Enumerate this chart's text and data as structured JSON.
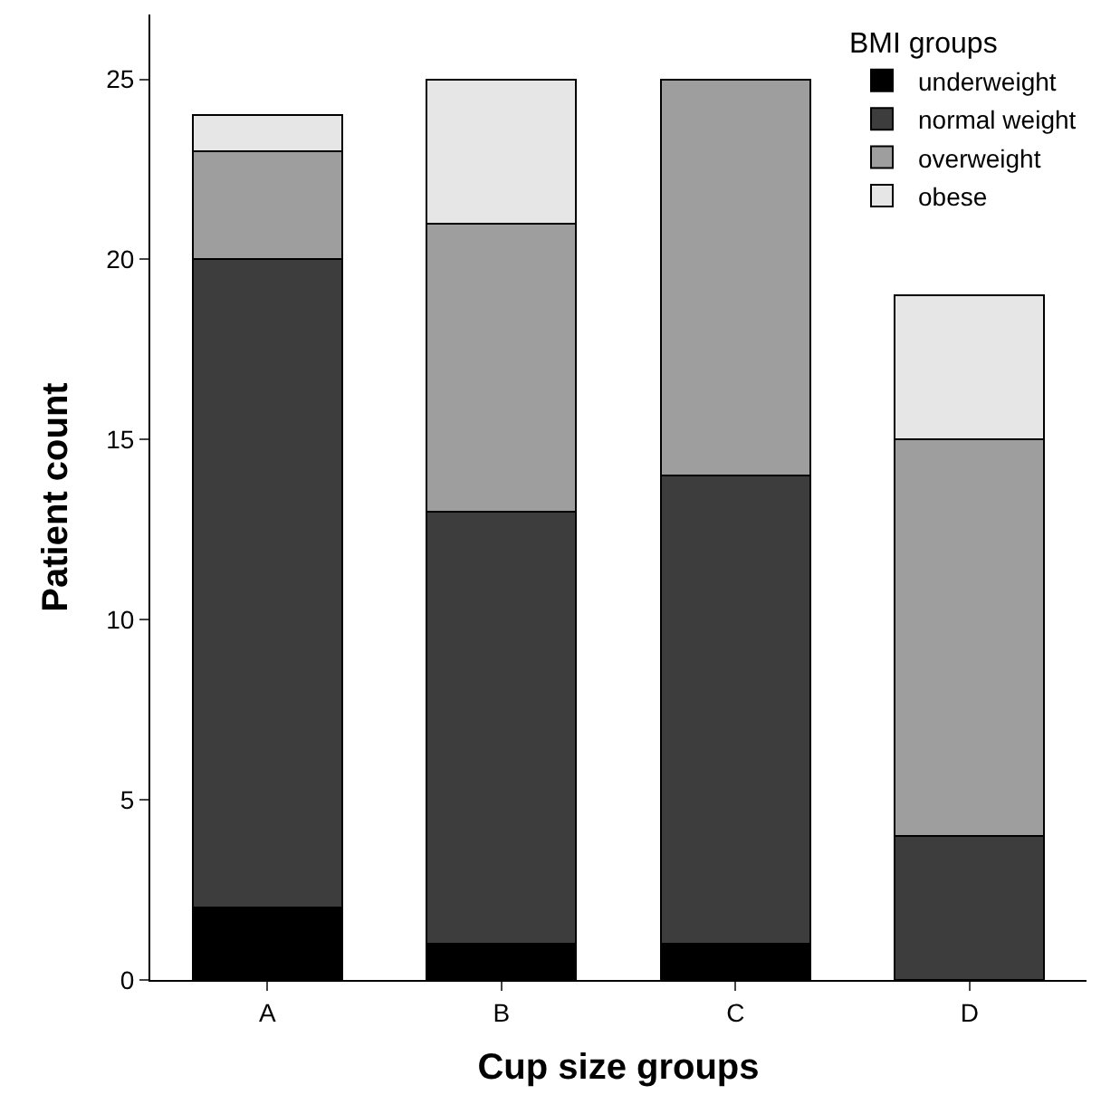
{
  "chart_data": {
    "type": "bar",
    "stacked": true,
    "xlabel": "Cup size groups",
    "ylabel": "Patient count",
    "legend_title": "BMI groups",
    "legend": "top right",
    "grid": false,
    "categories": [
      "A",
      "B",
      "C",
      "D"
    ],
    "series": [
      {
        "name": "underweight",
        "color": "#000000",
        "values": [
          2,
          1,
          1,
          0
        ]
      },
      {
        "name": "normal weight",
        "color": "#3d3d3d",
        "values": [
          18,
          12,
          13,
          4
        ]
      },
      {
        "name": "overweight",
        "color": "#9e9e9e",
        "values": [
          3,
          8,
          11,
          11
        ]
      },
      {
        "name": "obese",
        "color": "#e6e6e6",
        "values": [
          1,
          4,
          0,
          4
        ]
      }
    ],
    "ylim": [
      0,
      26.8
    ],
    "yticks": [
      0,
      5,
      10,
      15,
      20,
      25
    ]
  }
}
